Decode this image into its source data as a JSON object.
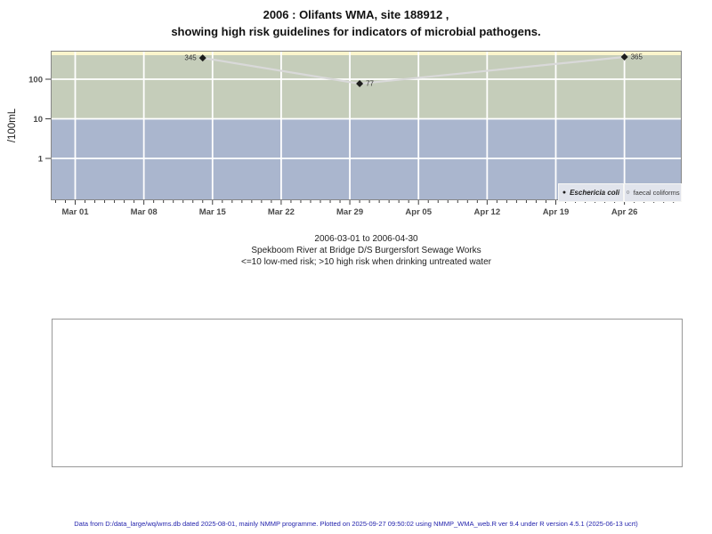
{
  "title": {
    "line1": "2006 : Olifants WMA, site 188912 ,",
    "line2": "showing high risk guidelines for indicators of microbial pathogens."
  },
  "chart_data": {
    "type": "line",
    "title": "2006 : Olifants WMA, site 188912 , showing high risk guidelines for indicators of microbial pathogens.",
    "ylabel": "/100mL",
    "y_scale": "log10",
    "y_ticks": [
      100,
      10,
      1
    ],
    "ylim": [
      0.09,
      500
    ],
    "x_ticks": [
      "Mar 01",
      "Mar 08",
      "Mar 15",
      "Mar 22",
      "Mar 29",
      "Apr 05",
      "Apr 12",
      "Apr 19",
      "Apr 26"
    ],
    "x_start_date": "2006-03-01",
    "x_range": [
      "2006-03-01",
      "2006-04-30"
    ],
    "grid": true,
    "legend_position": "bottom-right",
    "bands": [
      {
        "label": "top-strip",
        "color": "#fcf5cc"
      },
      {
        "label": "high risk (>10)",
        "color": "#c5cdba"
      },
      {
        "label": "low-med risk (<=10)",
        "color": "#aab6ce"
      }
    ],
    "colors": {
      "grid": "#ffffff",
      "panel_border": "#878787",
      "line": "#d9d9d9",
      "marker": "#1c1c1c",
      "tick": "#3d3d3d",
      "axis_text": "#4a4a4a",
      "point_label": "#333333"
    },
    "series": [
      {
        "name": "Eschericia coli",
        "marker": "filled-diamond",
        "points": [
          {
            "date": "2006-03-14",
            "value": 345
          },
          {
            "date": "2006-03-30",
            "value": 77
          },
          {
            "date": "2006-04-26",
            "value": 365
          }
        ]
      },
      {
        "name": "faecal coliforms",
        "marker": "open-circle",
        "points": []
      }
    ]
  },
  "captions": {
    "date_range": "2006-03-01 to 2006-04-30",
    "site": "Spekboom River at Bridge D/S Burgersfort Sewage Works",
    "risk_note": "<=10 low-med risk; >10 high risk when drinking untreated water"
  },
  "footer": {
    "text": "Data from D:/data_large/wq/wms.db dated 2025-08-01, mainly NMMP programme. Plotted on 2025-09-27 09:50:02 using NMMP_WMA_web.R ver 9.4 under R version 4.5.1 (2025-06-13 ucrt)"
  }
}
